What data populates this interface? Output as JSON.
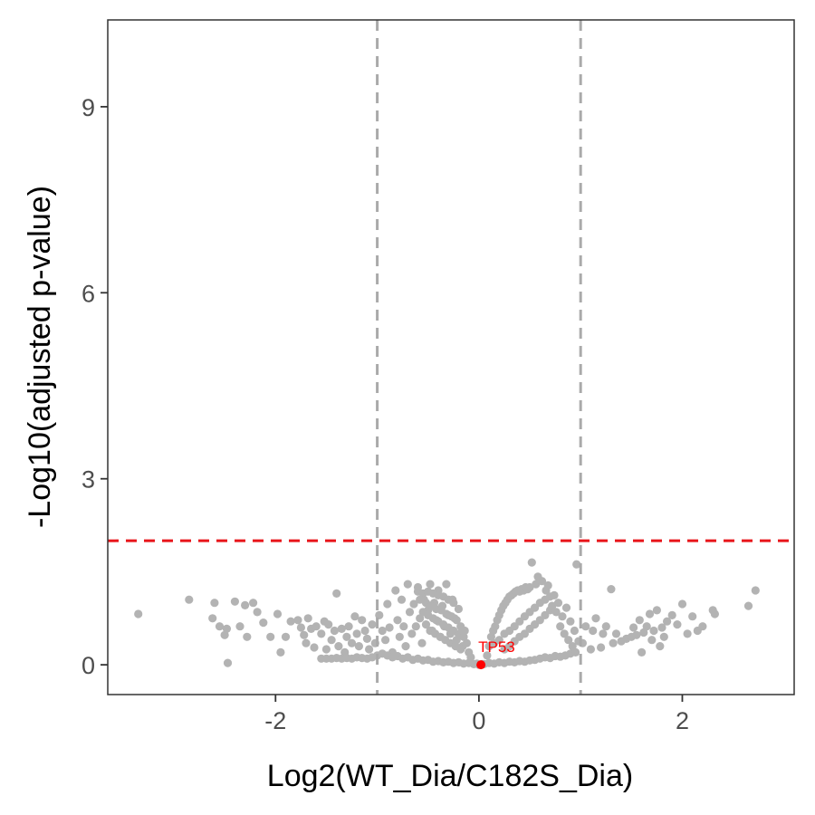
{
  "chart_data": {
    "type": "scatter",
    "xlabel": "Log2(WT_Dia/C182S_Dia)",
    "ylabel": "-Log10(adjusted p-value)",
    "xlim": [
      -3.65,
      3.1
    ],
    "ylim": [
      -0.48,
      10.4
    ],
    "x_ticks": [
      -2,
      0,
      2
    ],
    "y_ticks": [
      0,
      3,
      6,
      9
    ],
    "x_tick_labels": [
      "-2",
      "0",
      "2"
    ],
    "y_tick_labels": [
      "0",
      "3",
      "6",
      "9"
    ],
    "grid": false,
    "legend": "none",
    "point_color": "#b3b3b3",
    "highlight_color": "#ff0000",
    "fold_change_thresholds": [
      -1,
      1
    ],
    "pvalue_threshold": 2,
    "threshold_line_colors": {
      "fold_change": "#aaaaaa",
      "pvalue": "#e8141a"
    },
    "highlight": {
      "label": "TP53",
      "x": 0.02,
      "y": 0.0
    },
    "points": [
      [
        -3.35,
        0.82
      ],
      [
        -2.85,
        1.05
      ],
      [
        -2.6,
        1.0
      ],
      [
        -2.62,
        0.75
      ],
      [
        -2.55,
        0.62
      ],
      [
        -2.5,
        0.48
      ],
      [
        -2.48,
        0.58
      ],
      [
        -2.47,
        0.03
      ],
      [
        -2.4,
        1.02
      ],
      [
        -2.35,
        0.62
      ],
      [
        -2.3,
        0.96
      ],
      [
        -2.28,
        0.45
      ],
      [
        -2.22,
        1.0
      ],
      [
        -2.18,
        0.85
      ],
      [
        -2.12,
        0.68
      ],
      [
        -2.05,
        0.45
      ],
      [
        -1.98,
        0.82
      ],
      [
        -1.95,
        0.2
      ],
      [
        -1.9,
        0.45
      ],
      [
        -1.85,
        0.7
      ],
      [
        -1.78,
        0.72
      ],
      [
        -1.75,
        0.6
      ],
      [
        -1.72,
        0.48
      ],
      [
        -1.7,
        0.35
      ],
      [
        -1.68,
        0.75
      ],
      [
        -1.65,
        0.58
      ],
      [
        -1.62,
        0.28
      ],
      [
        -1.6,
        0.62
      ],
      [
        -1.55,
        0.5
      ],
      [
        -1.52,
        0.7
      ],
      [
        -1.5,
        0.25
      ],
      [
        -1.48,
        0.65
      ],
      [
        -1.45,
        0.4
      ],
      [
        -1.42,
        0.55
      ],
      [
        -1.4,
        1.15
      ],
      [
        -1.38,
        0.3
      ],
      [
        -1.35,
        0.58
      ],
      [
        -1.32,
        0.2
      ],
      [
        -1.3,
        0.45
      ],
      [
        -1.28,
        0.62
      ],
      [
        -1.25,
        0.35
      ],
      [
        -1.22,
        0.78
      ],
      [
        -1.2,
        0.5
      ],
      [
        -1.18,
        0.3
      ],
      [
        -1.15,
        0.72
      ],
      [
        -1.12,
        0.55
      ],
      [
        -1.1,
        0.42
      ],
      [
        -1.08,
        0.25
      ],
      [
        -1.05,
        0.65
      ],
      [
        -1.02,
        0.35
      ],
      [
        -1.55,
        0.1
      ],
      [
        -1.5,
        0.1
      ],
      [
        -1.45,
        0.1
      ],
      [
        -1.4,
        0.11
      ],
      [
        -1.35,
        0.1
      ],
      [
        -1.3,
        0.11
      ],
      [
        -1.25,
        0.1
      ],
      [
        -1.2,
        0.12
      ],
      [
        -1.15,
        0.11
      ],
      [
        -1.1,
        0.1
      ],
      [
        -1.05,
        0.12
      ],
      [
        -1.0,
        0.15
      ],
      [
        -0.98,
        0.8
      ],
      [
        -0.95,
        0.55
      ],
      [
        -0.92,
        0.4
      ],
      [
        -0.9,
        0.98
      ],
      [
        -0.88,
        0.6
      ],
      [
        -0.85,
        0.2
      ],
      [
        -0.82,
        1.2
      ],
      [
        -0.8,
        0.72
      ],
      [
        -0.78,
        0.45
      ],
      [
        -0.76,
        1.05
      ],
      [
        -0.74,
        0.62
      ],
      [
        -0.72,
        0.3
      ],
      [
        -0.7,
        1.3
      ],
      [
        -0.68,
        0.85
      ],
      [
        -0.66,
        0.5
      ],
      [
        -0.64,
        0.98
      ],
      [
        -0.62,
        0.62
      ],
      [
        -0.6,
        1.25
      ],
      [
        -0.58,
        0.75
      ],
      [
        -0.56,
        0.35
      ],
      [
        -0.54,
        1.05
      ],
      [
        -0.52,
        0.65
      ],
      [
        -0.5,
        0.88
      ],
      [
        -0.48,
        1.3
      ],
      [
        -0.46,
        0.55
      ],
      [
        -0.44,
        1.0
      ],
      [
        -0.42,
        0.72
      ],
      [
        -0.4,
        1.2
      ],
      [
        -0.38,
        0.45
      ],
      [
        -0.36,
        0.95
      ],
      [
        -0.34,
        0.62
      ],
      [
        -0.32,
        1.3
      ],
      [
        -0.3,
        0.8
      ],
      [
        -0.28,
        0.5
      ],
      [
        -0.26,
        1.05
      ],
      [
        -0.24,
        0.75
      ],
      [
        -0.22,
        0.4
      ],
      [
        -0.2,
        0.9
      ],
      [
        -0.18,
        0.62
      ],
      [
        -0.16,
        0.3
      ],
      [
        -0.14,
        0.55
      ],
      [
        -0.12,
        0.35
      ],
      [
        -0.1,
        0.2
      ],
      [
        -0.08,
        0.12
      ],
      [
        -0.6,
        1.18
      ],
      [
        -0.55,
        1.15
      ],
      [
        -0.5,
        1.18
      ],
      [
        -0.45,
        1.15
      ],
      [
        -0.4,
        1.12
      ],
      [
        -0.35,
        1.1
      ],
      [
        -0.3,
        1.05
      ],
      [
        -0.25,
        1.0
      ],
      [
        -0.58,
        1.05
      ],
      [
        -0.52,
        1.0
      ],
      [
        -0.47,
        0.95
      ],
      [
        -0.42,
        0.9
      ],
      [
        -0.37,
        0.88
      ],
      [
        -0.32,
        0.82
      ],
      [
        -0.27,
        0.78
      ],
      [
        -0.22,
        0.72
      ],
      [
        -0.55,
        0.85
      ],
      [
        -0.5,
        0.8
      ],
      [
        -0.45,
        0.75
      ],
      [
        -0.4,
        0.7
      ],
      [
        -0.35,
        0.65
      ],
      [
        -0.3,
        0.6
      ],
      [
        -0.25,
        0.55
      ],
      [
        -0.2,
        0.5
      ],
      [
        -0.15,
        0.45
      ],
      [
        -0.48,
        0.55
      ],
      [
        -0.43,
        0.5
      ],
      [
        -0.38,
        0.45
      ],
      [
        -0.33,
        0.4
      ],
      [
        -0.28,
        0.35
      ],
      [
        -0.23,
        0.3
      ],
      [
        -0.18,
        0.25
      ],
      [
        -0.95,
        0.18
      ],
      [
        -0.9,
        0.15
      ],
      [
        -0.85,
        0.12
      ],
      [
        -0.8,
        0.14
      ],
      [
        -0.75,
        0.1
      ],
      [
        -0.7,
        0.12
      ],
      [
        -0.65,
        0.08
      ],
      [
        -0.6,
        0.1
      ],
      [
        -0.55,
        0.07
      ],
      [
        -0.5,
        0.08
      ],
      [
        -0.45,
        0.05
      ],
      [
        -0.4,
        0.06
      ],
      [
        -0.35,
        0.04
      ],
      [
        -0.3,
        0.05
      ],
      [
        -0.25,
        0.03
      ],
      [
        -0.2,
        0.04
      ],
      [
        -0.15,
        0.02
      ],
      [
        -0.1,
        0.03
      ],
      [
        -0.05,
        0.01
      ],
      [
        0.05,
        0.01
      ],
      [
        0.1,
        0.03
      ],
      [
        0.15,
        0.02
      ],
      [
        0.2,
        0.04
      ],
      [
        0.25,
        0.03
      ],
      [
        0.3,
        0.05
      ],
      [
        0.35,
        0.04
      ],
      [
        0.4,
        0.06
      ],
      [
        0.45,
        0.05
      ],
      [
        0.5,
        0.07
      ],
      [
        0.55,
        0.08
      ],
      [
        0.6,
        0.1
      ],
      [
        0.65,
        0.12
      ],
      [
        0.7,
        0.11
      ],
      [
        0.75,
        0.14
      ],
      [
        0.8,
        0.13
      ],
      [
        0.85,
        0.15
      ],
      [
        0.9,
        0.18
      ],
      [
        0.95,
        0.2
      ],
      [
        0.08,
        0.15
      ],
      [
        0.1,
        0.3
      ],
      [
        0.12,
        0.45
      ],
      [
        0.14,
        0.55
      ],
      [
        0.16,
        0.62
      ],
      [
        0.18,
        0.72
      ],
      [
        0.2,
        0.8
      ],
      [
        0.22,
        0.88
      ],
      [
        0.24,
        0.95
      ],
      [
        0.26,
        1.0
      ],
      [
        0.28,
        1.05
      ],
      [
        0.3,
        1.1
      ],
      [
        0.32,
        1.12
      ],
      [
        0.34,
        1.15
      ],
      [
        0.36,
        1.18
      ],
      [
        0.38,
        1.2
      ],
      [
        0.4,
        1.18
      ],
      [
        0.42,
        1.22
      ],
      [
        0.44,
        1.2
      ],
      [
        0.46,
        1.25
      ],
      [
        0.48,
        1.22
      ],
      [
        0.5,
        1.25
      ],
      [
        0.15,
        0.35
      ],
      [
        0.2,
        0.4
      ],
      [
        0.25,
        0.5
      ],
      [
        0.3,
        0.55
      ],
      [
        0.35,
        0.62
      ],
      [
        0.4,
        0.7
      ],
      [
        0.45,
        0.78
      ],
      [
        0.5,
        0.85
      ],
      [
        0.55,
        0.92
      ],
      [
        0.6,
        1.0
      ],
      [
        0.65,
        1.05
      ],
      [
        0.7,
        1.1
      ],
      [
        0.25,
        0.25
      ],
      [
        0.3,
        0.3
      ],
      [
        0.35,
        0.38
      ],
      [
        0.4,
        0.45
      ],
      [
        0.45,
        0.5
      ],
      [
        0.5,
        0.58
      ],
      [
        0.55,
        0.65
      ],
      [
        0.6,
        0.72
      ],
      [
        0.65,
        0.8
      ],
      [
        0.7,
        0.88
      ],
      [
        0.52,
        1.65
      ],
      [
        0.56,
        1.3
      ],
      [
        0.58,
        1.42
      ],
      [
        0.62,
        1.35
      ],
      [
        0.66,
        1.2
      ],
      [
        0.68,
        1.28
      ],
      [
        0.72,
        0.95
      ],
      [
        0.74,
        1.12
      ],
      [
        0.76,
        0.85
      ],
      [
        0.78,
        1.0
      ],
      [
        0.8,
        0.62
      ],
      [
        0.82,
        0.78
      ],
      [
        0.84,
        0.5
      ],
      [
        0.86,
        0.92
      ],
      [
        0.88,
        0.4
      ],
      [
        0.9,
        0.7
      ],
      [
        0.92,
        0.3
      ],
      [
        0.94,
        0.55
      ],
      [
        0.96,
        1.62
      ],
      [
        0.98,
        0.38
      ],
      [
        1.02,
        0.35
      ],
      [
        1.05,
        0.62
      ],
      [
        1.1,
        0.25
      ],
      [
        1.12,
        0.55
      ],
      [
        1.15,
        0.75
      ],
      [
        1.2,
        0.28
      ],
      [
        1.22,
        0.5
      ],
      [
        1.25,
        0.62
      ],
      [
        1.3,
        1.22
      ],
      [
        1.32,
        0.35
      ],
      [
        1.35,
        0.5
      ],
      [
        1.4,
        0.38
      ],
      [
        1.45,
        0.42
      ],
      [
        1.5,
        0.45
      ],
      [
        1.52,
        0.6
      ],
      [
        1.55,
        0.48
      ],
      [
        1.58,
        0.72
      ],
      [
        1.6,
        0.2
      ],
      [
        1.62,
        0.52
      ],
      [
        1.65,
        0.62
      ],
      [
        1.68,
        0.82
      ],
      [
        1.7,
        0.4
      ],
      [
        1.72,
        0.55
      ],
      [
        1.75,
        0.88
      ],
      [
        1.78,
        0.3
      ],
      [
        1.8,
        0.6
      ],
      [
        1.82,
        0.45
      ],
      [
        1.85,
        0.7
      ],
      [
        1.9,
        0.8
      ],
      [
        1.95,
        0.65
      ],
      [
        2.0,
        0.98
      ],
      [
        2.05,
        0.5
      ],
      [
        2.1,
        0.78
      ],
      [
        2.15,
        0.55
      ],
      [
        2.2,
        0.62
      ],
      [
        2.3,
        0.88
      ],
      [
        2.32,
        0.82
      ],
      [
        2.65,
        0.95
      ],
      [
        2.72,
        1.2
      ],
      [
        -0.02,
        0.02
      ],
      [
        0.0,
        0.0
      ],
      [
        0.03,
        0.01
      ]
    ]
  }
}
